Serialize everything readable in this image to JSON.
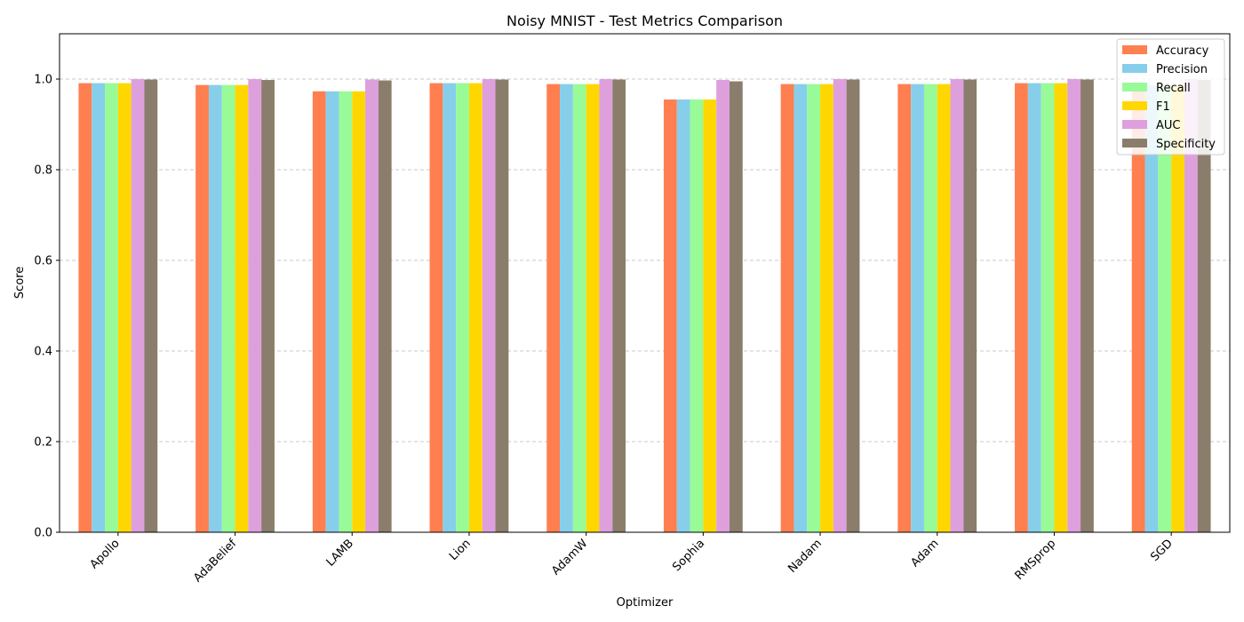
{
  "chart_data": {
    "type": "bar",
    "title": "Noisy MNIST - Test Metrics Comparison",
    "xlabel": "Optimizer",
    "ylabel": "Score",
    "ylim": [
      0,
      1.1
    ],
    "yticks": [
      "0.0",
      "0.2",
      "0.4",
      "0.6",
      "0.8",
      "1.0"
    ],
    "grid": "horizontal dashed",
    "legend_position": "top-right",
    "categories": [
      "Apollo",
      "AdaBelief",
      "LAMB",
      "Lion",
      "AdamW",
      "Sophia",
      "Nadam",
      "Adam",
      "RMSprop",
      "SGD"
    ],
    "series": [
      {
        "name": "Accuracy",
        "color": "#FF7F50",
        "values": [
          0.991,
          0.987,
          0.973,
          0.991,
          0.989,
          0.955,
          0.989,
          0.989,
          0.991,
          0.987
        ]
      },
      {
        "name": "Precision",
        "color": "#87CEEB",
        "values": [
          0.991,
          0.987,
          0.973,
          0.991,
          0.989,
          0.955,
          0.989,
          0.989,
          0.991,
          0.987
        ]
      },
      {
        "name": "Recall",
        "color": "#98FB98",
        "values": [
          0.991,
          0.987,
          0.973,
          0.991,
          0.989,
          0.955,
          0.989,
          0.989,
          0.991,
          0.987
        ]
      },
      {
        "name": "F1",
        "color": "#FFD700",
        "values": [
          0.991,
          0.987,
          0.973,
          0.991,
          0.989,
          0.955,
          0.989,
          0.989,
          0.991,
          0.987
        ]
      },
      {
        "name": "AUC",
        "color": "#DDA0DD",
        "values": [
          1.0,
          1.0,
          0.999,
          1.0,
          1.0,
          0.998,
          1.0,
          1.0,
          1.0,
          1.0
        ]
      },
      {
        "name": "Specificity",
        "color": "#8B7D6B",
        "values": [
          0.999,
          0.998,
          0.997,
          0.999,
          0.999,
          0.995,
          0.999,
          0.999,
          0.999,
          0.998
        ]
      }
    ]
  }
}
